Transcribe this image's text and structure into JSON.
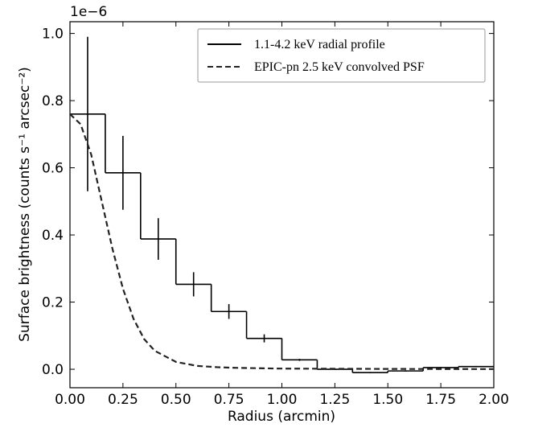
{
  "chart_data": {
    "type": "line",
    "xlabel": "Radius (arcmin)",
    "ylabel": "Surface brightness (counts s⁻¹ arcsec⁻²)",
    "offset_text": "1e−6",
    "xlim": [
      0,
      2
    ],
    "ylim": [
      -0.055,
      1.035
    ],
    "xticks": [
      {
        "value": 0,
        "label": "0.00"
      },
      {
        "value": 0.25,
        "label": "0.25"
      },
      {
        "value": 0.5,
        "label": "0.50"
      },
      {
        "value": 0.75,
        "label": "0.75"
      },
      {
        "value": 1,
        "label": "1.00"
      },
      {
        "value": 1.25,
        "label": "1.25"
      },
      {
        "value": 1.5,
        "label": "1.50"
      },
      {
        "value": 1.75,
        "label": "1.75"
      },
      {
        "value": 2,
        "label": "2.00"
      }
    ],
    "yticks": [
      {
        "value": 0,
        "label": "0.0"
      },
      {
        "value": 0.2,
        "label": "0.2"
      },
      {
        "value": 0.4,
        "label": "0.4"
      },
      {
        "value": 0.6,
        "label": "0.6"
      },
      {
        "value": 0.8,
        "label": "0.8"
      },
      {
        "value": 1,
        "label": "1.0"
      }
    ],
    "legend": "upper right",
    "series": [
      {
        "name": "1.1-4.2 keV radial profile",
        "style": "step",
        "color": "#000000",
        "bins": [
          0,
          0.1667,
          0.3333,
          0.5,
          0.6667,
          0.8333,
          1,
          1.1667,
          1.3333,
          1.5,
          1.6667,
          1.8333,
          2
        ],
        "values": [
          0.76,
          0.585,
          0.388,
          0.253,
          0.172,
          0.092,
          0.028,
          0.0,
          -0.01,
          -0.005,
          0.005,
          0.008
        ],
        "errors": [
          0.23,
          0.11,
          0.062,
          0.036,
          0.022,
          0.012,
          0.003,
          0.002,
          0.002,
          0.002,
          0.002,
          0.002
        ]
      },
      {
        "name": "EPIC-pn 2.5 keV convolved PSF",
        "style": "dashed",
        "color": "#222222",
        "x": [
          0,
          0.05,
          0.1,
          0.15,
          0.2,
          0.25,
          0.3,
          0.35,
          0.4,
          0.5,
          0.6,
          0.7,
          0.8,
          1,
          1.5,
          2
        ],
        "values": [
          0.76,
          0.73,
          0.64,
          0.5,
          0.36,
          0.24,
          0.15,
          0.09,
          0.055,
          0.022,
          0.01,
          0.006,
          0.004,
          0.002,
          0.001,
          0.0005
        ]
      }
    ]
  }
}
